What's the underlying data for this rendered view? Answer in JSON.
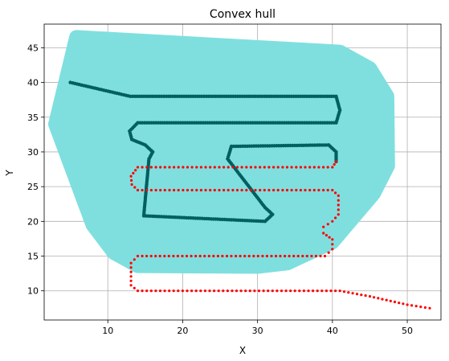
{
  "chart_data": {
    "type": "scatter",
    "title": "Convex hull",
    "xlabel": "X",
    "ylabel": "Y",
    "xlim": [
      1.5,
      54.5
    ],
    "ylim": [
      5.8,
      48.4
    ],
    "xticks": [
      10,
      20,
      30,
      40,
      50
    ],
    "yticks": [
      10,
      15,
      20,
      25,
      30,
      35,
      40,
      45
    ],
    "grid": true,
    "hull": {
      "color": "#7fdfdf",
      "points": [
        [
          5.8,
          46.5
        ],
        [
          41,
          44.4
        ],
        [
          45,
          42
        ],
        [
          47.3,
          38
        ],
        [
          47.4,
          28
        ],
        [
          45.5,
          24
        ],
        [
          40,
          17
        ],
        [
          34,
          14
        ],
        [
          30,
          13.5
        ],
        [
          14,
          13.6
        ],
        [
          10.8,
          15.5
        ],
        [
          8,
          19.5
        ],
        [
          3,
          34
        ]
      ]
    },
    "series": [
      {
        "color": "#005f5f",
        "marker_size": 2.2,
        "path": [
          [
            5,
            40
          ],
          [
            13,
            38
          ],
          [
            40.5,
            38
          ],
          [
            41,
            36
          ],
          [
            40.5,
            34.2
          ],
          [
            14,
            34.2
          ],
          [
            12.9,
            33
          ],
          [
            13.2,
            31.8
          ],
          [
            15,
            31
          ],
          [
            16,
            30
          ],
          [
            15.5,
            29
          ],
          [
            14.8,
            20.8
          ],
          [
            31,
            20
          ],
          [
            32,
            21
          ],
          [
            31,
            22
          ],
          [
            26,
            29
          ],
          [
            26.5,
            30.8
          ],
          [
            39.5,
            31
          ],
          [
            40.5,
            30
          ],
          [
            40.5,
            28.6
          ]
        ],
        "step": 0.3
      },
      {
        "color": "#ff0000",
        "marker_size": 1.6,
        "path": [
          [
            40.5,
            28.6
          ],
          [
            40,
            27.8
          ],
          [
            14,
            27.8
          ],
          [
            13.1,
            26.5
          ],
          [
            13.2,
            25.3
          ],
          [
            14,
            24.5
          ],
          [
            40,
            24.5
          ],
          [
            40.8,
            23.7
          ],
          [
            40.8,
            21
          ],
          [
            40,
            20
          ],
          [
            38.8,
            19.2
          ],
          [
            38.8,
            18.3
          ],
          [
            40,
            17.4
          ],
          [
            40,
            16
          ],
          [
            39,
            15
          ],
          [
            14,
            15
          ],
          [
            13.1,
            14
          ],
          [
            13.1,
            10.8
          ],
          [
            14,
            10
          ],
          [
            41,
            10
          ],
          [
            45,
            9.2
          ],
          [
            50,
            8
          ],
          [
            53,
            7.5
          ]
        ],
        "step": 0.6
      }
    ]
  }
}
